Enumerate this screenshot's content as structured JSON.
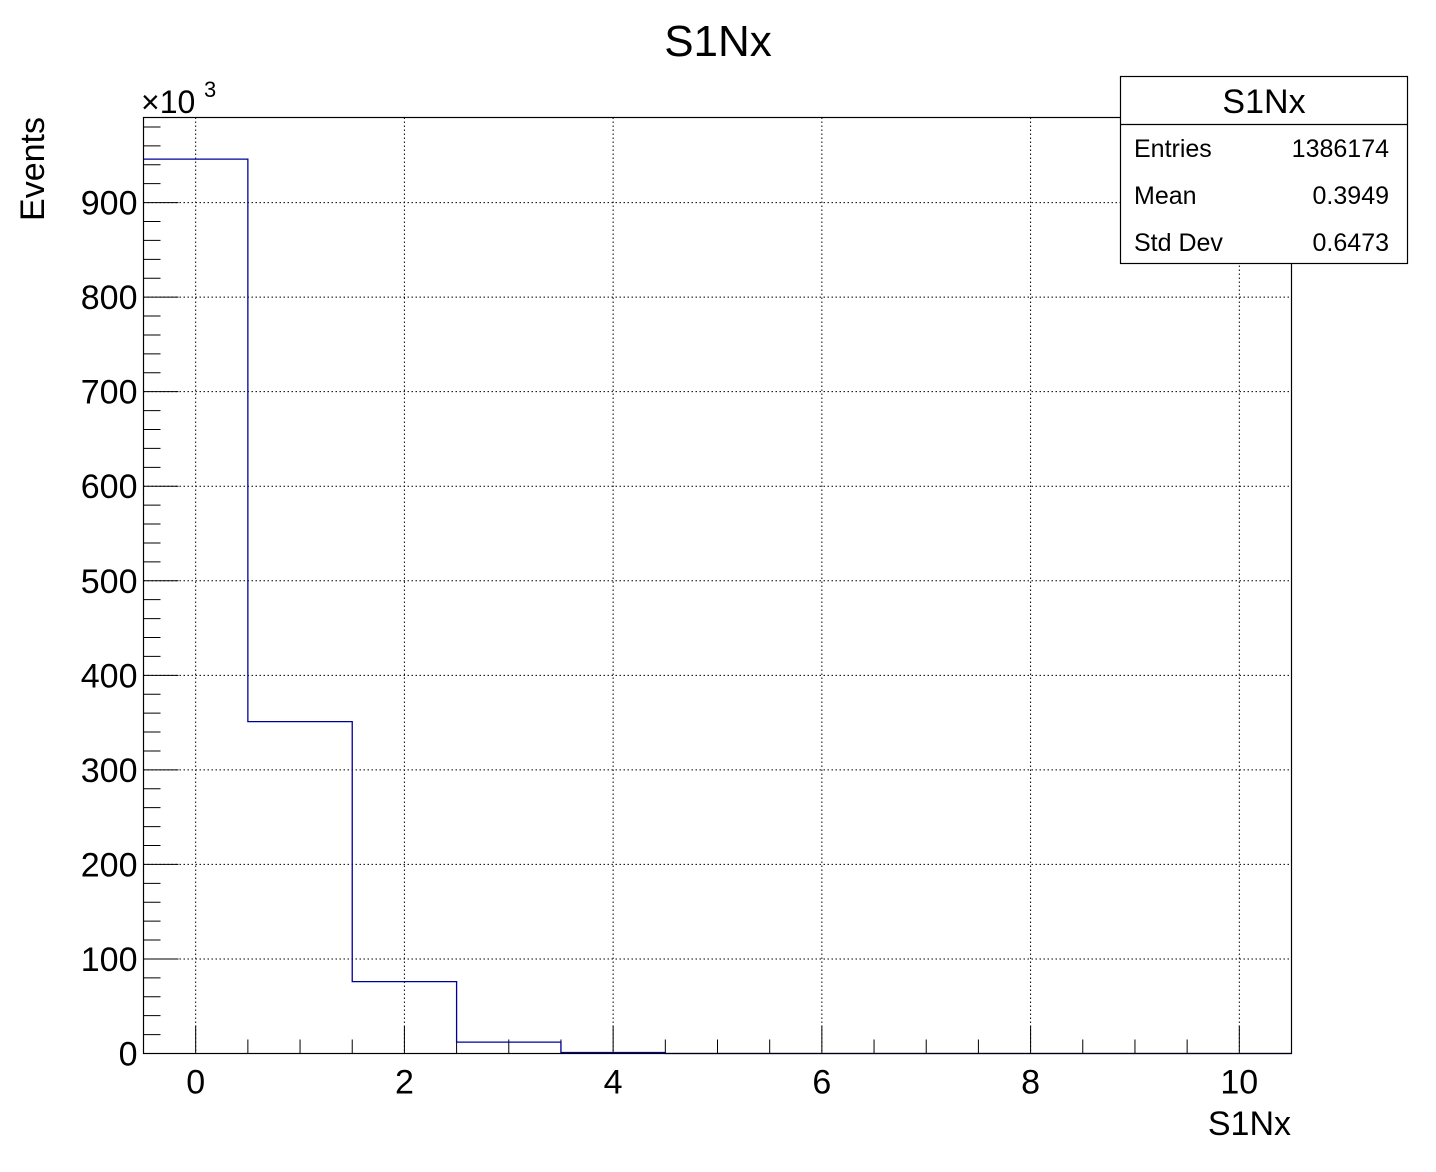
{
  "chart_data": {
    "type": "bar",
    "title": "S1Nx",
    "xlabel": "S1Nx",
    "ylabel": "Events",
    "y_multiplier_label": "×10",
    "y_multiplier_exponent": "3",
    "xlim": [
      -0.5,
      10.5
    ],
    "ylim": [
      0,
      990
    ],
    "x_ticks": [
      0,
      2,
      4,
      6,
      8,
      10
    ],
    "y_ticks": [
      0,
      100,
      200,
      300,
      400,
      500,
      600,
      700,
      800,
      900
    ],
    "grid": true,
    "bin_width": 1,
    "bin_centers": [
      0,
      1,
      2,
      3,
      4,
      5,
      6,
      7,
      8,
      9,
      10
    ],
    "values": [
      946,
      351,
      76,
      12,
      1,
      0,
      0,
      0,
      0,
      0,
      0
    ],
    "line_color": "#000099",
    "stats_box": {
      "title": "S1Nx",
      "placement": "top-right",
      "rows": [
        {
          "label": "Entries",
          "value": "1386174"
        },
        {
          "label": "Mean",
          "value": "0.3949"
        },
        {
          "label": "Std Dev",
          "value": "0.6473"
        }
      ]
    }
  }
}
